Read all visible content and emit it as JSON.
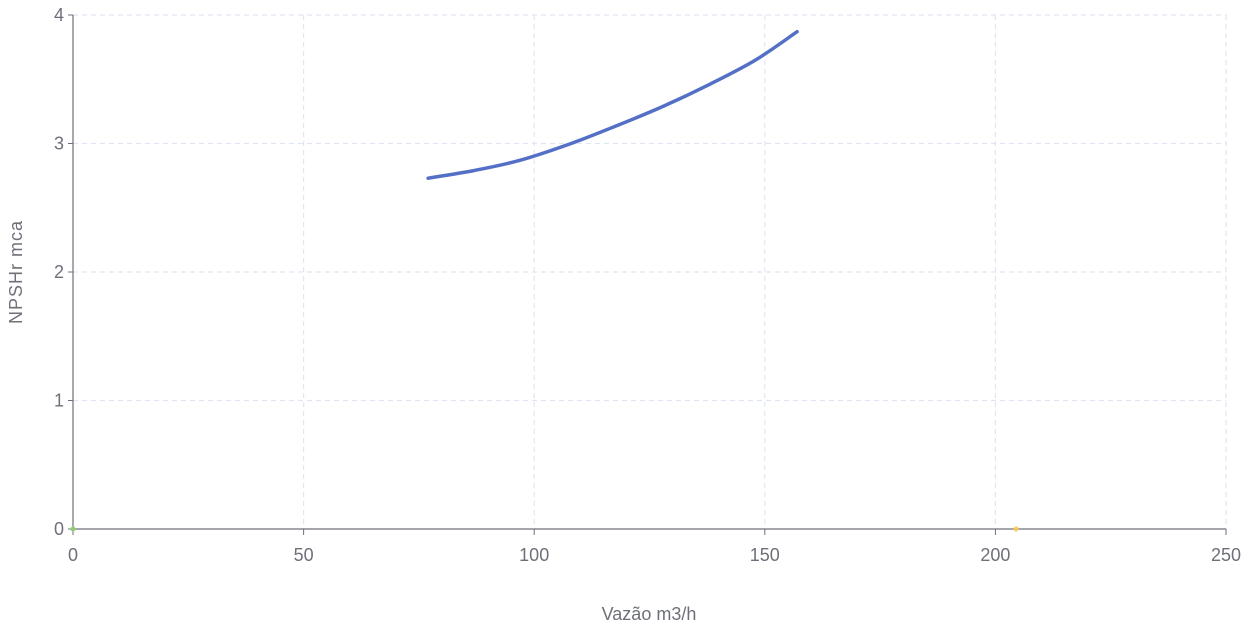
{
  "chart_data": {
    "type": "line",
    "title": "",
    "xlabel": "Vazão  m3/h",
    "ylabel": "NPSHr   mca",
    "xlim": [
      0,
      250
    ],
    "ylim": [
      0,
      4
    ],
    "x_ticks": [
      "0",
      "50",
      "100",
      "150",
      "200",
      "250"
    ],
    "y_ticks": [
      "0",
      "1",
      "2",
      "3",
      "4"
    ],
    "grid": true,
    "legend": "none",
    "series": [
      {
        "color": "#5470c6",
        "points": [
          [
            77,
            2.73
          ],
          [
            87,
            2.79
          ],
          [
            97,
            2.87
          ],
          [
            108,
            3.0
          ],
          [
            118,
            3.14
          ],
          [
            128,
            3.29
          ],
          [
            138,
            3.46
          ],
          [
            148,
            3.65
          ],
          [
            157,
            3.87
          ]
        ]
      }
    ],
    "markers": [
      {
        "x": 0,
        "y": 0,
        "color": "#91cc75"
      },
      {
        "x": 204.5,
        "y": 0,
        "color": "#fac858"
      }
    ],
    "colors": {
      "grid": "#e0e6f1",
      "axis": "#6e7079",
      "line": "#5470c6"
    }
  }
}
